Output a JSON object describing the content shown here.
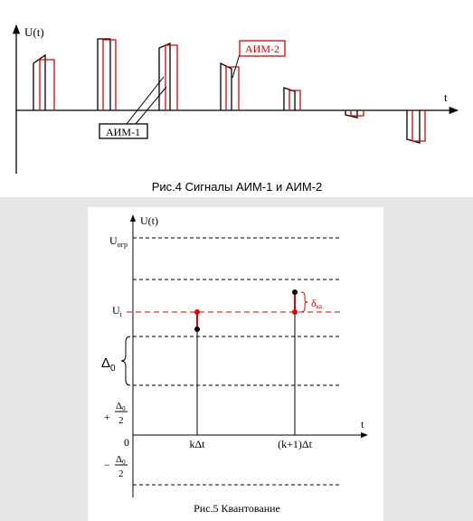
{
  "figure4": {
    "u_axis": "U(t)",
    "t_axis": "t",
    "aim2": "АИМ-2",
    "aim1": "АИМ-1",
    "caption": "Рис.4 Сигналы АИМ-1 и АИМ-2"
  },
  "figure5": {
    "u_axis": "U(t)",
    "t_axis": "t",
    "u_ogr": {
      "main": "U",
      "sub": "огр"
    },
    "u_i": {
      "main": "U",
      "sub": "i"
    },
    "delta0": {
      "main": "Δ",
      "sub": "0"
    },
    "plus_half": {
      "sign": "+",
      "num": "Δ",
      "num_sub": "0",
      "den": "2"
    },
    "minus_half": {
      "sign": "−",
      "num": "Δ",
      "num_sub": "0",
      "den": "2"
    },
    "zero": "0",
    "k_dt": "kΔt",
    "k1_dt": "(k+1)Δt",
    "delta_kv": {
      "main": "δ",
      "sub": "кв."
    },
    "caption": "Рис.5 Квантование"
  }
}
